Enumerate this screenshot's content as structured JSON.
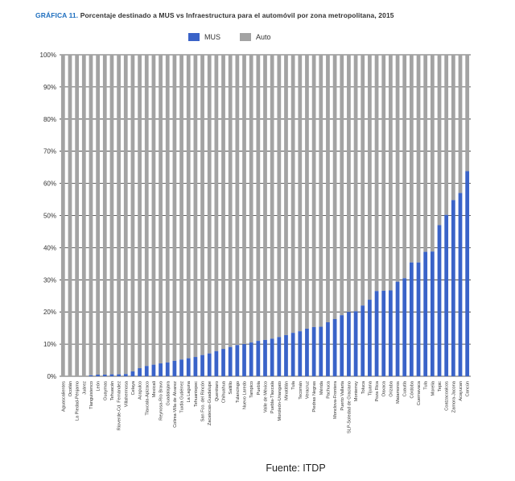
{
  "chart_title_lead": "GRÁFICA 11.",
  "chart_title_rest": "Porcentaje destinado a MUS vs Infraestructura para el automóvil por zona metropolitana, 2015",
  "source": "Fuente: ITDP",
  "colors": {
    "mus": "#3a63c8",
    "auto": "#a3a3a3",
    "lead": "#1f6fbf"
  },
  "chart_data": {
    "type": "bar",
    "stacked": true,
    "percent": true,
    "title": "GRÁFICA 11. Porcentaje destinado a MUS vs Infraestructura para el automóvil por zona metropolitana, 2015",
    "legend": [
      "MUS",
      "Auto"
    ],
    "legend_position": "top",
    "ylim": [
      0,
      100
    ],
    "yticks": [
      "0%",
      "10%",
      "20%",
      "30%",
      "40%",
      "50%",
      "60%",
      "70%",
      "80%",
      "90%",
      "100%"
    ],
    "grid": true,
    "categories": [
      "Aguascalientes",
      "Ocotlán",
      "La Piedad-Pénjamo",
      "Juárez",
      "Tlanguistenco",
      "León",
      "Guaymas",
      "Tehuacán",
      "Rioverde-Cd. Fernández",
      "Villahermosa",
      "Celaya",
      "Acapulco",
      "Tlaxcala-Apizaco",
      "Mexicali",
      "Reynosa-Río Bravo",
      "Guadalajara",
      "Colima-Villa de Álvarez",
      "Tuxtla Gutiérrez",
      "La Laguna",
      "Tehuantepec",
      "San Fco. del Rincón",
      "Zacatecas-Guadalupe",
      "Querétaro",
      "Chihuahua",
      "Saltillo",
      "Tulancingo",
      "Nuevo Laredo",
      "Tampico",
      "Puebla",
      "Valle de México",
      "Puebla-Tlaxcala",
      "Moroleón-Uriangato",
      "Minatitlán",
      "Tula",
      "Tecomán",
      "Veracruz",
      "Piedras Negras",
      "Mérida",
      "Pachuca",
      "Monclova-Frontera",
      "Puerto Vallarta",
      "SLP-Soledad de Graciano",
      "Monterrey",
      "Toluca",
      "Tijuana",
      "Poza Rica",
      "Oaxaca",
      "Orizaba",
      "Matamoros",
      "Cuautla",
      "Córdoba",
      "Cuernavaca",
      "Tula",
      "Morelia",
      "Tepic",
      "Coatzacoalcos",
      "Zamora-Jacona",
      "Acayucan",
      "Cancún"
    ],
    "series": [
      {
        "name": "MUS",
        "values": [
          0,
          0,
          0,
          0,
          0.3,
          0.5,
          0.5,
          0.6,
          0.6,
          0.7,
          1.5,
          2.5,
          3.2,
          3.6,
          4,
          4.3,
          4.8,
          5.2,
          5.6,
          6,
          6.6,
          7.1,
          7.8,
          8.5,
          9.1,
          9.7,
          10,
          10.5,
          11,
          11.3,
          11.7,
          12.2,
          12.8,
          13.5,
          14,
          14.8,
          15.3,
          15.4,
          16.8,
          17.8,
          19,
          20,
          20.2,
          22,
          23.8,
          26.5,
          26.6,
          26.7,
          29.4,
          30.5,
          35.4,
          35.4,
          38.7,
          38.8,
          47,
          50.2,
          54.8,
          57,
          63.8
        ]
      },
      {
        "name": "Auto",
        "values": [
          100,
          100,
          100,
          100,
          99.7,
          99.5,
          99.5,
          99.4,
          99.4,
          99.3,
          98.5,
          97.5,
          96.8,
          96.4,
          96,
          95.7,
          95.2,
          94.8,
          94.4,
          94,
          93.4,
          92.9,
          92.2,
          91.5,
          90.9,
          90.3,
          90,
          89.5,
          89,
          88.7,
          88.3,
          87.8,
          87.2,
          86.5,
          86,
          85.2,
          84.7,
          84.6,
          83.2,
          82.2,
          81,
          80,
          79.8,
          78,
          76.2,
          73.5,
          73.4,
          73.3,
          70.6,
          69.5,
          64.6,
          64.6,
          61.3,
          61.2,
          53,
          49.8,
          45.2,
          43,
          36.2
        ]
      }
    ]
  }
}
